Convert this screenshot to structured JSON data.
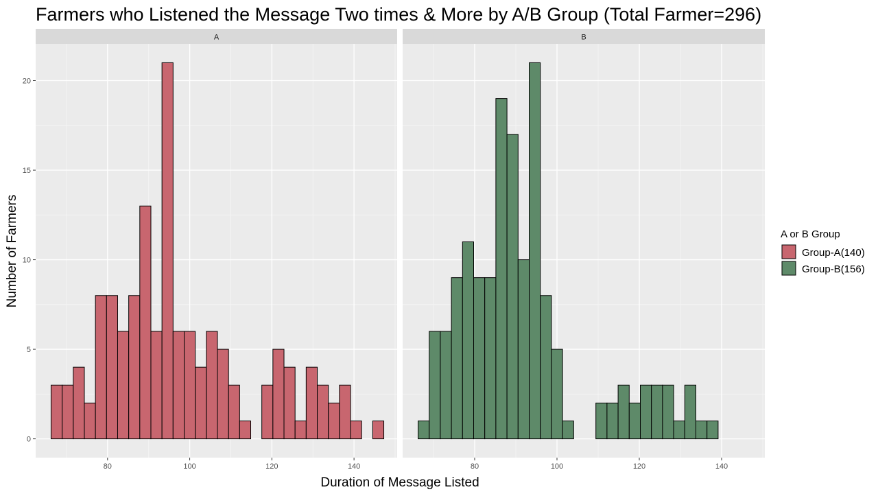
{
  "chart_data": {
    "type": "bar",
    "title": "Farmers who Listened the Message Two times & More by A/B Group (Total Farmer=296)",
    "xlabel": "Duration of Message Listed",
    "ylabel": "Number of Farmers",
    "xlim": [
      62.5,
      150.5
    ],
    "ylim": [
      -1.05,
      22.05
    ],
    "x_ticks": [
      80,
      100,
      120,
      140
    ],
    "y_ticks": [
      0,
      5,
      10,
      15,
      20
    ],
    "grid": true,
    "bin_width": 2.7,
    "legend": {
      "title": "A or B Group",
      "placement": "right",
      "entries": [
        {
          "label": "Group-A(140)",
          "color": "#C8666F"
        },
        {
          "label": "Group-B(156)",
          "color": "#5E8A69"
        }
      ]
    },
    "x": [
      67.6,
      70.3,
      73.0,
      75.7,
      78.4,
      81.1,
      83.8,
      86.5,
      89.2,
      91.9,
      94.6,
      97.3,
      100.0,
      102.7,
      105.4,
      108.1,
      110.8,
      113.5,
      116.2,
      118.9,
      121.6,
      124.3,
      127.0,
      129.7,
      132.4,
      135.1,
      137.8,
      140.5,
      143.2,
      145.9
    ],
    "panels": [
      {
        "strip": "A",
        "values": [
          3,
          3,
          4,
          2,
          8,
          8,
          6,
          8,
          13,
          6,
          21,
          6,
          6,
          4,
          6,
          5,
          3,
          1,
          0,
          3,
          5,
          4,
          1,
          4,
          3,
          2,
          3,
          1,
          0,
          1
        ],
        "color": "#C8666F"
      },
      {
        "strip": "B",
        "values": [
          1,
          6,
          6,
          9,
          11,
          9,
          9,
          19,
          17,
          10,
          21,
          8,
          5,
          1,
          0,
          0,
          2,
          2,
          3,
          2,
          3,
          3,
          3,
          1,
          3,
          1,
          1,
          0,
          0,
          0
        ],
        "color": "#5E8A69"
      }
    ]
  }
}
